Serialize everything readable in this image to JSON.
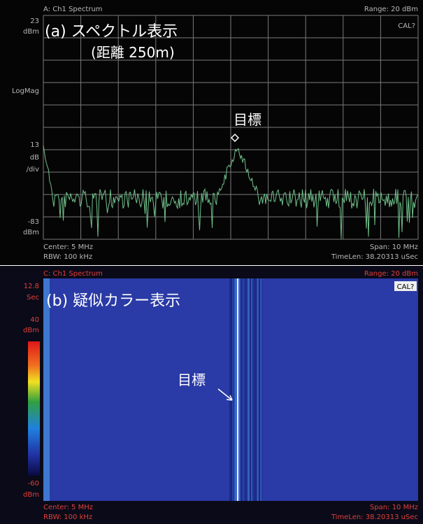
{
  "spectrum_panel": {
    "title": "A: Ch1 Spectrum",
    "range": "Range: 20 dBm",
    "top_value": "23",
    "top_unit": "dBm",
    "scale_mode": "LogMag",
    "scale_value": "13",
    "scale_unit": "dB",
    "scale_per": "/div",
    "bottom_value": "-83",
    "bottom_unit": "dBm",
    "center": "Center: 5 MHz",
    "rbw": "RBW: 100 kHz",
    "span": "Span: 10 MHz",
    "time_len": "TimeLen: 38.20313 uSec",
    "cal": "CAL?",
    "caption": "(a) スペクトル表示",
    "caption_sub": "(距離 250m)",
    "target_label": "目標"
  },
  "waterfall_panel": {
    "title": "C: Ch1 Spectrum",
    "range": "Range: 20 dBm",
    "time_value": "12.8",
    "time_unit": "Sec",
    "top_value": "40",
    "top_unit": "dBm",
    "bottom_value": "-60",
    "bottom_unit": "dBm",
    "center": "Center: 5 MHz",
    "rbw": "RBW: 100 kHz",
    "span": "Span: 10 MHz",
    "time_len": "TimeLen: 38.20313 uSec",
    "cal": "CAL?",
    "caption": "(b) 疑似カラー表示",
    "target_label": "目標"
  }
}
